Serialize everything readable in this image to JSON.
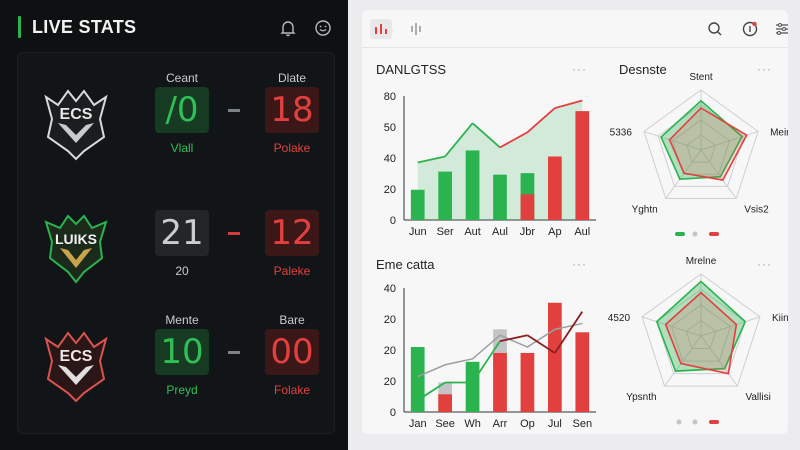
{
  "live": {
    "title": "LIVE STATS",
    "matches": [
      {
        "home_header": "Ceant",
        "home_score": "/0",
        "home_style": "green",
        "home_sub": "Vlall",
        "away_header": "Dlate",
        "away_score": "18",
        "away_style": "red",
        "away_sub": "Polake",
        "dash_style": "gray"
      },
      {
        "home_header": "",
        "home_score": "21",
        "home_style": "gray",
        "home_sub": "20",
        "away_header": "",
        "away_score": "12",
        "away_style": "red",
        "away_sub": "Paleke",
        "dash_style": "red"
      },
      {
        "home_header": "Mente",
        "home_score": "10",
        "home_style": "green",
        "home_sub": "Preyd",
        "away_header": "Bare",
        "away_score": "00",
        "away_style": "red",
        "away_sub": "Folake",
        "dash_style": "gray"
      }
    ],
    "logos": [
      "ECS",
      "LUIKS",
      "ECS"
    ]
  },
  "colors": {
    "green": "#2bb34f",
    "red": "#e2403f",
    "dark": "#0e1011",
    "light": "#f7f7f8"
  },
  "icons": {
    "header": [
      "bell-icon",
      "smiley-icon"
    ],
    "toolbar": [
      "bar-chart-icon",
      "waveform-icon",
      "search-icon",
      "info-icon",
      "filter-icon"
    ]
  },
  "charts": {
    "bar1": {
      "title": "DANLGTSS",
      "more": "···"
    },
    "bar2": {
      "title": "Eme catta",
      "more": "···"
    },
    "radar1": {
      "title": "Desnste",
      "more": "···"
    },
    "radar2": {
      "more": "···"
    }
  },
  "chart_data": [
    {
      "type": "bar",
      "title": "DANLGTSS",
      "categories": [
        "Jun",
        "Ser",
        "Aut",
        "Aul",
        "Jbr",
        "Ap",
        "Aul"
      ],
      "yticks": [
        "80",
        "50",
        "40",
        "20",
        "0"
      ],
      "ylim": [
        0,
        82
      ],
      "series": [
        {
          "color": "#2bb34f",
          "values": [
            20,
            32,
            46,
            30,
            31,
            null,
            null
          ]
        },
        {
          "color": "#e2403f",
          "values": [
            null,
            null,
            null,
            null,
            17,
            42,
            72
          ]
        }
      ],
      "line": [
        38,
        42,
        64,
        48,
        58,
        74,
        79
      ],
      "line_area": true
    },
    {
      "type": "bar",
      "title": "Eme catta",
      "categories": [
        "Jan",
        "See",
        "Wh",
        "Arr",
        "Op",
        "Jul",
        "Sen"
      ],
      "yticks": [
        "40",
        "20",
        "20",
        "20",
        "0"
      ],
      "ylim": [
        0,
        42
      ],
      "series": [
        {
          "color": "#2bb34f",
          "values": [
            22,
            null,
            17,
            null,
            null,
            null,
            null
          ]
        },
        {
          "color": "#e2403f",
          "values": [
            null,
            6,
            null,
            20,
            20,
            37,
            27
          ]
        },
        {
          "color": "#c4c4c6",
          "values": [
            null,
            10,
            null,
            28,
            null,
            null,
            null
          ]
        }
      ],
      "line": [
        4,
        10,
        10,
        24,
        26,
        20,
        34
      ],
      "line2": [
        12,
        16,
        18,
        26,
        22,
        28,
        30
      ]
    },
    {
      "type": "radar",
      "title": "Desnste",
      "axes": [
        "Stent",
        "Meing",
        "Vsis2",
        "Yghtn",
        "5336"
      ],
      "series": [
        {
          "color": "#2bb34f",
          "values": [
            0.82,
            0.72,
            0.55,
            0.6,
            0.7
          ]
        },
        {
          "color": "#e2403f",
          "values": [
            0.7,
            0.8,
            0.62,
            0.48,
            0.55
          ]
        }
      ],
      "legend": [
        "green",
        "gray",
        "red"
      ]
    },
    {
      "type": "radar",
      "axes": [
        "Mrelne",
        "Kiing",
        "Vallisi",
        "Ypsnth",
        "4520"
      ],
      "series": [
        {
          "color": "#2bb34f",
          "values": [
            0.88,
            0.75,
            0.65,
            0.7,
            0.75
          ]
        },
        {
          "color": "#e2403f",
          "values": [
            0.7,
            0.6,
            0.75,
            0.55,
            0.6
          ]
        }
      ],
      "legend": [
        "gray",
        "gray",
        "red"
      ]
    }
  ]
}
